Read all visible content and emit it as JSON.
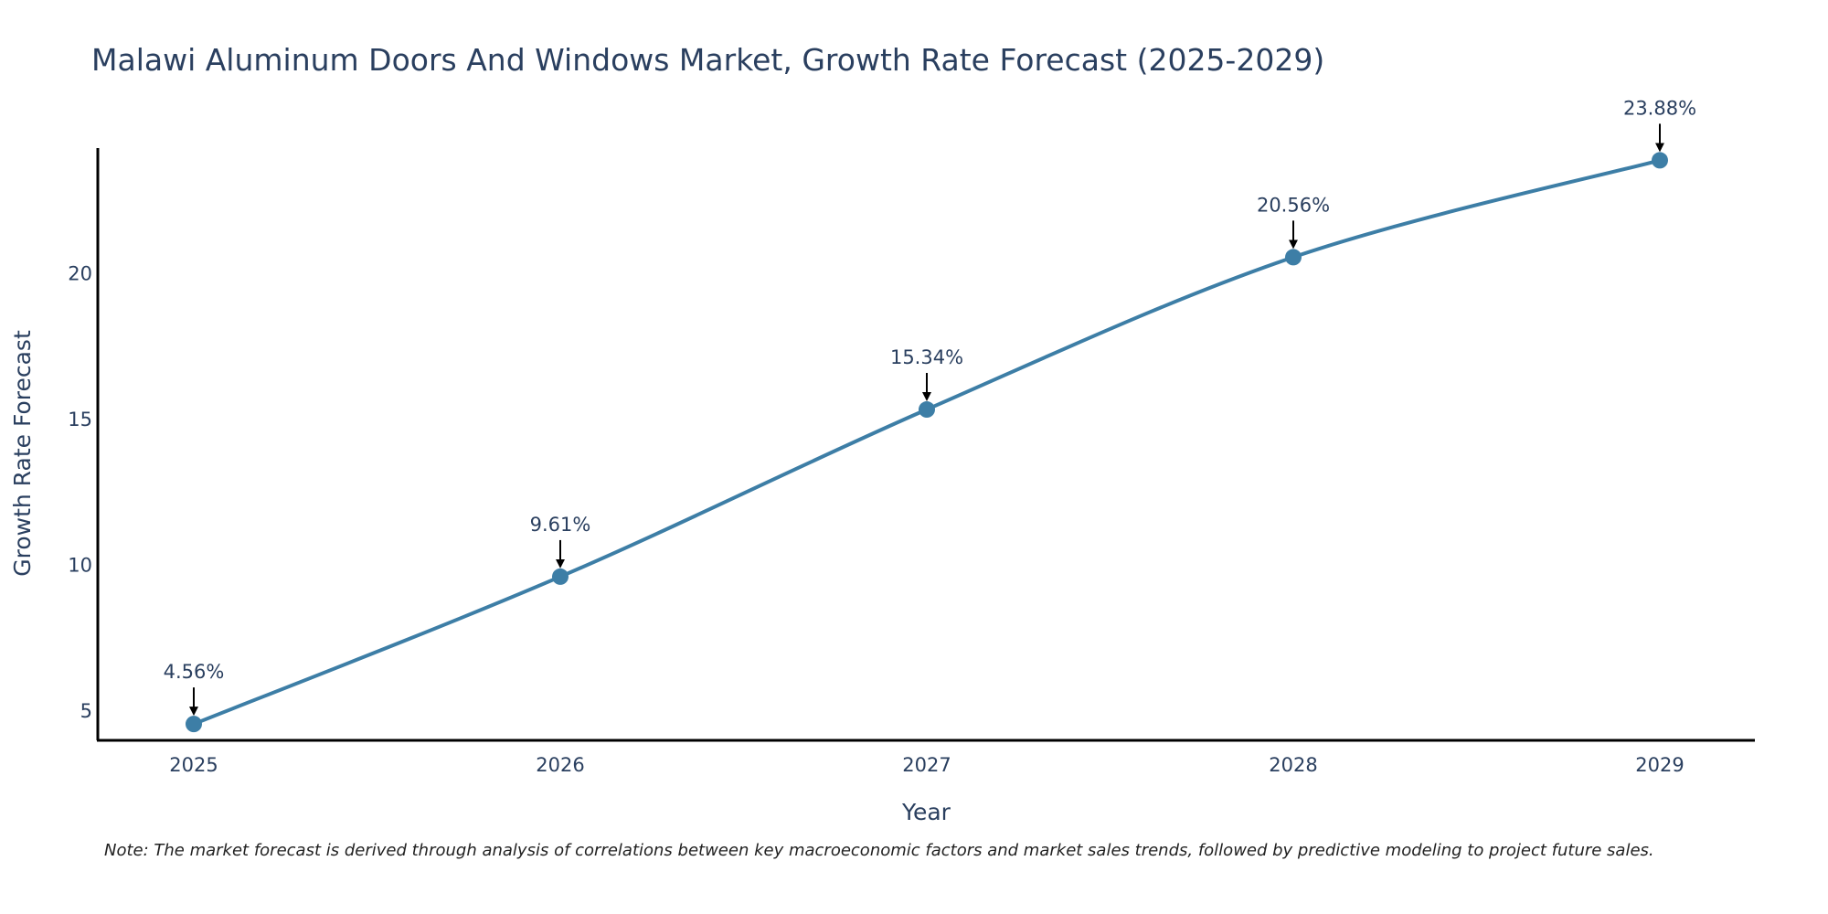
{
  "chart_data": {
    "type": "line",
    "title": "Malawi Aluminum Doors And Windows Market, Growth Rate Forecast (2025-2029)",
    "xlabel": "Year",
    "ylabel": "Growth Rate Forecast",
    "categories": [
      "2025",
      "2026",
      "2027",
      "2028",
      "2029"
    ],
    "series": [
      {
        "name": "Growth Rate Forecast",
        "values": [
          4.56,
          9.61,
          15.34,
          20.56,
          23.88
        ],
        "labels": [
          "4.56%",
          "9.61%",
          "15.34%",
          "20.56%",
          "23.88%"
        ]
      }
    ],
    "yticks": [
      5,
      10,
      15,
      20
    ],
    "ytick_labels": [
      "5",
      "10",
      "15",
      "20"
    ],
    "ylim": [
      4,
      24.3
    ],
    "grid": false,
    "legend": "none",
    "line_color": "#3d7ea6",
    "marker_color": "#3d7ea6",
    "axis_color": "#000000",
    "note": "Note: The market forecast is derived through analysis of correlations between key macroeconomic factors and market sales trends, followed by predictive modeling to project future sales."
  }
}
